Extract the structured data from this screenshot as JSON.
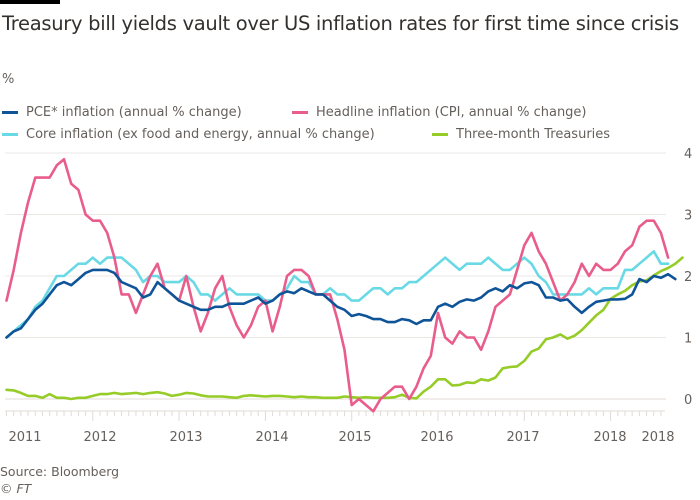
{
  "chart_data": {
    "type": "line",
    "title": "Treasury bill yields vault over US inflation rates for first time since crisis",
    "ylabel": "%",
    "xlabel": "",
    "ylim": [
      0,
      4
    ],
    "yticks": [
      "0",
      "1",
      "2",
      "3",
      "4"
    ],
    "xtick_labels": [
      "2011",
      "2012",
      "2013",
      "2014",
      "2015",
      "2016",
      "2017",
      "2018",
      "2018"
    ],
    "x_start": "2011-01",
    "frequency": "monthly",
    "grid": true,
    "legend_position": "top",
    "series": [
      {
        "name": "PCE* inflation (annual % change)",
        "color": "#0f5499",
        "values": [
          1.0,
          1.1,
          1.15,
          1.3,
          1.45,
          1.55,
          1.7,
          1.85,
          1.9,
          1.85,
          1.95,
          2.05,
          2.1,
          2.1,
          2.1,
          2.05,
          1.9,
          1.85,
          1.8,
          1.65,
          1.7,
          1.9,
          1.8,
          1.7,
          1.6,
          1.55,
          1.5,
          1.45,
          1.45,
          1.5,
          1.5,
          1.55,
          1.55,
          1.55,
          1.6,
          1.65,
          1.55,
          1.6,
          1.7,
          1.75,
          1.72,
          1.8,
          1.75,
          1.7,
          1.7,
          1.6,
          1.5,
          1.45,
          1.35,
          1.38,
          1.35,
          1.3,
          1.3,
          1.25,
          1.25,
          1.3,
          1.28,
          1.22,
          1.28,
          1.28,
          1.5,
          1.55,
          1.5,
          1.58,
          1.62,
          1.6,
          1.65,
          1.75,
          1.8,
          1.75,
          1.85,
          1.8,
          1.88,
          1.9,
          1.85,
          1.65,
          1.65,
          1.6,
          1.62,
          1.5,
          1.4,
          1.5,
          1.58,
          1.6,
          1.62,
          1.62,
          1.63,
          1.7,
          1.95,
          1.9,
          2.0,
          1.97,
          2.03,
          1.95
        ]
      },
      {
        "name": "Headline inflation (CPI, annual % change)",
        "color": "#e95d8c",
        "values": [
          1.6,
          2.1,
          2.7,
          3.2,
          3.6,
          3.6,
          3.6,
          3.8,
          3.9,
          3.5,
          3.4,
          3.0,
          2.9,
          2.9,
          2.7,
          2.3,
          1.7,
          1.7,
          1.4,
          1.7,
          2.0,
          2.2,
          1.8,
          1.7,
          1.6,
          2.0,
          1.5,
          1.1,
          1.4,
          1.8,
          2.0,
          1.5,
          1.2,
          1.0,
          1.2,
          1.5,
          1.6,
          1.1,
          1.5,
          2.0,
          2.1,
          2.1,
          2.0,
          1.7,
          1.7,
          1.7,
          1.3,
          0.8,
          -0.1,
          0.0,
          -0.1,
          -0.2,
          0.0,
          0.1,
          0.2,
          0.2,
          0.0,
          0.2,
          0.5,
          0.7,
          1.4,
          1.0,
          0.9,
          1.1,
          1.0,
          1.0,
          0.8,
          1.1,
          1.5,
          1.6,
          1.7,
          2.1,
          2.5,
          2.7,
          2.4,
          2.2,
          1.9,
          1.6,
          1.7,
          1.9,
          2.2,
          2.0,
          2.2,
          2.1,
          2.1,
          2.2,
          2.4,
          2.5,
          2.8,
          2.9,
          2.9,
          2.7,
          2.3
        ]
      },
      {
        "name": "Core inflation (ex food and energy, annual % change)",
        "color": "#6ad9e6",
        "values": [
          1.0,
          1.1,
          1.2,
          1.3,
          1.5,
          1.6,
          1.8,
          2.0,
          2.0,
          2.1,
          2.2,
          2.2,
          2.3,
          2.2,
          2.3,
          2.3,
          2.3,
          2.2,
          2.1,
          1.9,
          2.0,
          2.0,
          1.9,
          1.9,
          1.9,
          2.0,
          1.9,
          1.7,
          1.7,
          1.6,
          1.7,
          1.8,
          1.7,
          1.7,
          1.7,
          1.7,
          1.6,
          1.6,
          1.7,
          1.8,
          2.0,
          1.9,
          1.9,
          1.7,
          1.7,
          1.8,
          1.7,
          1.7,
          1.6,
          1.6,
          1.7,
          1.8,
          1.8,
          1.7,
          1.8,
          1.8,
          1.9,
          1.9,
          2.0,
          2.1,
          2.2,
          2.3,
          2.2,
          2.1,
          2.2,
          2.2,
          2.2,
          2.3,
          2.2,
          2.1,
          2.1,
          2.2,
          2.3,
          2.2,
          2.0,
          1.9,
          1.7,
          1.7,
          1.7,
          1.7,
          1.7,
          1.8,
          1.7,
          1.8,
          1.8,
          1.8,
          2.1,
          2.1,
          2.2,
          2.3,
          2.4,
          2.2,
          2.2
        ]
      },
      {
        "name": "Three-month Treasuries",
        "color": "#96cc28",
        "values": [
          0.15,
          0.14,
          0.1,
          0.05,
          0.05,
          0.02,
          0.08,
          0.02,
          0.02,
          0.0,
          0.02,
          0.02,
          0.05,
          0.08,
          0.08,
          0.1,
          0.08,
          0.09,
          0.1,
          0.08,
          0.1,
          0.11,
          0.09,
          0.05,
          0.07,
          0.1,
          0.09,
          0.06,
          0.04,
          0.04,
          0.04,
          0.03,
          0.02,
          0.05,
          0.06,
          0.05,
          0.04,
          0.05,
          0.05,
          0.04,
          0.03,
          0.04,
          0.03,
          0.03,
          0.02,
          0.02,
          0.02,
          0.04,
          0.03,
          0.02,
          0.03,
          0.02,
          0.02,
          0.02,
          0.03,
          0.07,
          0.02,
          0.01,
          0.12,
          0.2,
          0.32,
          0.32,
          0.22,
          0.23,
          0.27,
          0.26,
          0.32,
          0.3,
          0.35,
          0.5,
          0.52,
          0.53,
          0.62,
          0.77,
          0.82,
          0.97,
          1.0,
          1.05,
          0.98,
          1.03,
          1.12,
          1.24,
          1.36,
          1.45,
          1.63,
          1.7,
          1.76,
          1.85,
          1.91,
          1.93,
          2.01,
          2.08,
          2.13,
          2.2,
          2.3
        ]
      }
    ]
  },
  "legend": [
    {
      "label": "PCE* inflation (annual % change)",
      "color": "#0f5499"
    },
    {
      "label": "Headline inflation (CPI, annual % change)",
      "color": "#e95d8c"
    },
    {
      "label": "Core inflation (ex food and energy, annual % change)",
      "color": "#6ad9e6"
    },
    {
      "label": "Three-month Treasuries",
      "color": "#96cc28"
    }
  ],
  "source": "Source: Bloomberg",
  "copyright": "© FT"
}
